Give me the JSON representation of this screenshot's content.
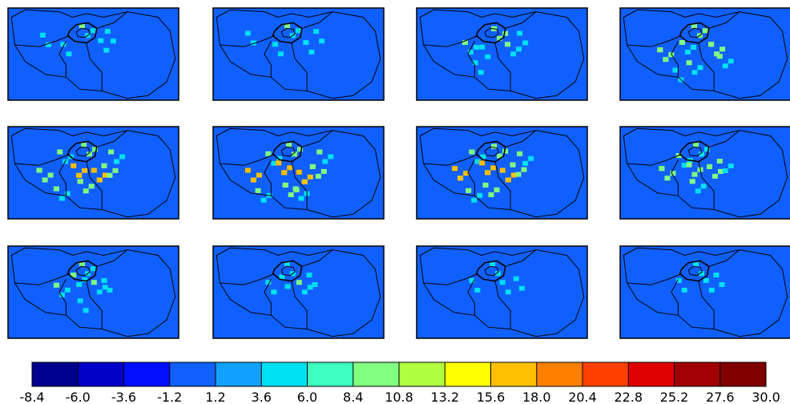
{
  "panels": [
    {
      "hotspots": [
        [
          0.22,
          0.32,
          1
        ],
        [
          0.34,
          0.42,
          1
        ],
        [
          0.45,
          0.22,
          2
        ],
        [
          0.56,
          0.38,
          1
        ],
        [
          0.6,
          0.28,
          1
        ]
      ]
    },
    {
      "hotspots": [
        [
          0.22,
          0.3,
          1
        ],
        [
          0.38,
          0.42,
          1
        ],
        [
          0.45,
          0.22,
          2
        ],
        [
          0.56,
          0.4,
          1
        ],
        [
          0.62,
          0.28,
          1
        ]
      ]
    },
    {
      "hotspots": [
        [
          0.3,
          0.4,
          2
        ],
        [
          0.4,
          0.45,
          1
        ],
        [
          0.47,
          0.25,
          3
        ],
        [
          0.55,
          0.42,
          2
        ],
        [
          0.62,
          0.3,
          1
        ],
        [
          0.36,
          0.62,
          1
        ]
      ]
    },
    {
      "hotspots": [
        [
          0.25,
          0.48,
          3
        ],
        [
          0.38,
          0.4,
          2
        ],
        [
          0.45,
          0.22,
          3
        ],
        [
          0.55,
          0.42,
          3
        ],
        [
          0.6,
          0.55,
          2
        ],
        [
          0.42,
          0.62,
          2
        ],
        [
          0.34,
          0.7,
          1
        ]
      ]
    },
    {
      "hotspots": [
        [
          0.2,
          0.5,
          3
        ],
        [
          0.32,
          0.3,
          2
        ],
        [
          0.4,
          0.45,
          4
        ],
        [
          0.46,
          0.22,
          3
        ],
        [
          0.52,
          0.5,
          4
        ],
        [
          0.58,
          0.45,
          3
        ],
        [
          0.44,
          0.62,
          3
        ],
        [
          0.3,
          0.7,
          2
        ],
        [
          0.62,
          0.3,
          2
        ]
      ]
    },
    {
      "hotspots": [
        [
          0.22,
          0.5,
          4
        ],
        [
          0.34,
          0.32,
          2
        ],
        [
          0.4,
          0.42,
          4
        ],
        [
          0.46,
          0.22,
          3
        ],
        [
          0.52,
          0.52,
          4
        ],
        [
          0.6,
          0.46,
          3
        ],
        [
          0.44,
          0.66,
          3
        ],
        [
          0.28,
          0.72,
          2
        ],
        [
          0.64,
          0.3,
          2
        ],
        [
          0.5,
          0.7,
          2
        ]
      ]
    },
    {
      "hotspots": [
        [
          0.24,
          0.48,
          4
        ],
        [
          0.34,
          0.3,
          2
        ],
        [
          0.4,
          0.42,
          4
        ],
        [
          0.47,
          0.24,
          3
        ],
        [
          0.52,
          0.5,
          4
        ],
        [
          0.58,
          0.44,
          3
        ],
        [
          0.42,
          0.66,
          3
        ],
        [
          0.32,
          0.72,
          2
        ],
        [
          0.62,
          0.32,
          2
        ]
      ]
    },
    {
      "hotspots": [
        [
          0.26,
          0.48,
          3
        ],
        [
          0.36,
          0.34,
          2
        ],
        [
          0.42,
          0.44,
          3
        ],
        [
          0.46,
          0.22,
          2
        ],
        [
          0.54,
          0.46,
          3
        ],
        [
          0.6,
          0.4,
          2
        ],
        [
          0.44,
          0.62,
          2
        ]
      ]
    },
    {
      "hotspots": [
        [
          0.3,
          0.45,
          2
        ],
        [
          0.4,
          0.34,
          2
        ],
        [
          0.45,
          0.22,
          2
        ],
        [
          0.52,
          0.42,
          2
        ],
        [
          0.58,
          0.4,
          1
        ],
        [
          0.44,
          0.62,
          1
        ]
      ]
    },
    {
      "hotspots": [
        [
          0.34,
          0.42,
          1
        ],
        [
          0.42,
          0.36,
          1
        ],
        [
          0.45,
          0.22,
          1
        ],
        [
          0.52,
          0.42,
          2
        ],
        [
          0.58,
          0.34,
          1
        ]
      ]
    },
    {
      "hotspots": [
        [
          0.34,
          0.4,
          1
        ],
        [
          0.46,
          0.22,
          1
        ],
        [
          0.52,
          0.42,
          1
        ],
        [
          0.6,
          0.38,
          1
        ]
      ]
    },
    {
      "hotspots": [
        [
          0.36,
          0.4,
          1
        ],
        [
          0.46,
          0.22,
          1
        ],
        [
          0.52,
          0.4,
          1
        ],
        [
          0.58,
          0.34,
          1
        ]
      ]
    }
  ],
  "colorbar": {
    "min": -8.4,
    "max": 30.0,
    "colors": [
      "#00008f",
      "#0000c8",
      "#0010ff",
      "#1060ff",
      "#10a0ff",
      "#00e0f0",
      "#40ffc0",
      "#80ff80",
      "#b0ff40",
      "#ffff00",
      "#ffc000",
      "#ff8000",
      "#ff4000",
      "#e00000",
      "#a00000",
      "#800000"
    ],
    "labels": [
      "-8.4",
      "-6.0",
      "-3.6",
      "-1.2",
      "1.2",
      "3.6",
      "6.0",
      "8.4",
      "10.8",
      "13.2",
      "15.6",
      "18.0",
      "20.4",
      "22.8",
      "25.2",
      "27.6",
      "30.0"
    ]
  },
  "colors": {
    "background": "#1060ff",
    "outline": "#000000"
  }
}
